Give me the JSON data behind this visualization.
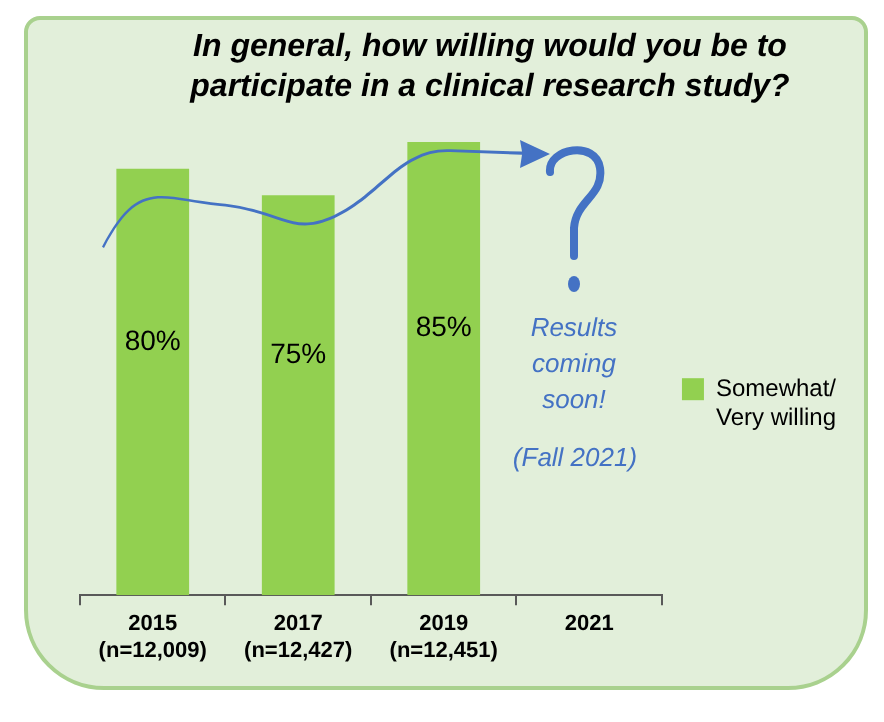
{
  "chart_data": {
    "type": "bar",
    "title": "In general, how willing would you be to participate in a clinical research study?",
    "categories": [
      "2015\n(n=12,009)",
      "2017\n(n=12,427)",
      "2019\n(n=12,451)",
      "2021"
    ],
    "series": [
      {
        "name": "Somewhat/\nVery willing",
        "color": "#92d050",
        "values": [
          80,
          75,
          85,
          null
        ],
        "value_labels": [
          "80%",
          "75%",
          "85%",
          null
        ]
      }
    ],
    "data_labels": true,
    "legend": "right",
    "annotations": [
      "Results\ncoming\nsoon!",
      "(Fall 2021)"
    ]
  }
}
